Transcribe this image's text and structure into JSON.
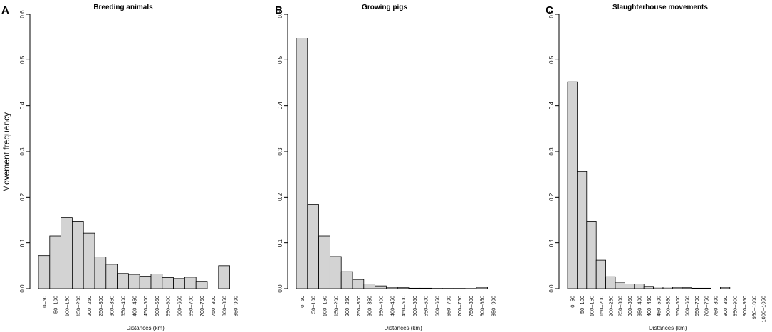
{
  "figure": {
    "ylabel": "Movement frequency"
  },
  "chart_data": [
    {
      "type": "bar",
      "panel": "A",
      "title": "Breeding animals",
      "xlabel": "Distances (km)",
      "ylabel": "Movement frequency",
      "ylim": [
        0,
        0.6
      ],
      "yticks": [
        "0.0",
        "0.1",
        "0.2",
        "0.3",
        "0.4",
        "0.5",
        "0.6"
      ],
      "categories": [
        "0–50",
        "50–100",
        "100–150",
        "150–200",
        "200–250",
        "250–300",
        "300–350",
        "350–400",
        "400–450",
        "450–500",
        "500–550",
        "550–600",
        "600–650",
        "650–700",
        "700–750",
        "750–800",
        "800–850",
        "850–900"
      ],
      "values": [
        0.072,
        0.115,
        0.156,
        0.147,
        0.121,
        0.069,
        0.053,
        0.033,
        0.031,
        0.027,
        0.032,
        0.024,
        0.022,
        0.025,
        0.016,
        0.0,
        0.05,
        0.0
      ],
      "extra_bars": [
        0.0
      ]
    },
    {
      "type": "bar",
      "panel": "B",
      "title": "Growing pigs",
      "xlabel": "Distances (km)",
      "ylim": [
        0,
        0.6
      ],
      "yticks": [
        "0.0",
        "0.1",
        "0.2",
        "0.3",
        "0.4",
        "0.5",
        "0.6"
      ],
      "categories": [
        "0–50",
        "50–100",
        "100–150",
        "150–200",
        "200–250",
        "250–300",
        "300–350",
        "350–400",
        "400–450",
        "450–500",
        "500–550",
        "550–600",
        "600–650",
        "650–700",
        "700–750",
        "750–800",
        "800–850",
        "850–900"
      ],
      "values": [
        0.548,
        0.184,
        0.115,
        0.07,
        0.037,
        0.02,
        0.01,
        0.006,
        0.003,
        0.002,
        0.001,
        0.001,
        0.0005,
        0.0005,
        0.0005,
        0.0003,
        0.003,
        0.0
      ],
      "extra_bars": [
        0.0
      ]
    },
    {
      "type": "bar",
      "panel": "C",
      "title": "Slaughterhouse movements",
      "xlabel": "Distances (km)",
      "ylim": [
        0,
        0.6
      ],
      "yticks": [
        "0.0",
        "0.1",
        "0.2",
        "0.3",
        "0.4",
        "0.5",
        "0.6"
      ],
      "categories": [
        "0–50",
        "50–100",
        "100–150",
        "150–200",
        "200–250",
        "250–300",
        "300–350",
        "350–400",
        "400–450",
        "450–500",
        "500–550",
        "550–600",
        "600–650",
        "650–700",
        "700–750",
        "750–800",
        "800–850",
        "850–900",
        "900–950",
        "950–1000",
        "1000–1050"
      ],
      "values": [
        0.452,
        0.256,
        0.147,
        0.062,
        0.026,
        0.014,
        0.01,
        0.01,
        0.005,
        0.004,
        0.004,
        0.003,
        0.002,
        0.001,
        0.001,
        0.0,
        0.003,
        0.0,
        0.0,
        0.0,
        0.0
      ],
      "extra_bars": []
    }
  ],
  "colors": {
    "bar_fill": "#d3d3d3",
    "bar_stroke": "#000000",
    "axis": "#000000"
  }
}
